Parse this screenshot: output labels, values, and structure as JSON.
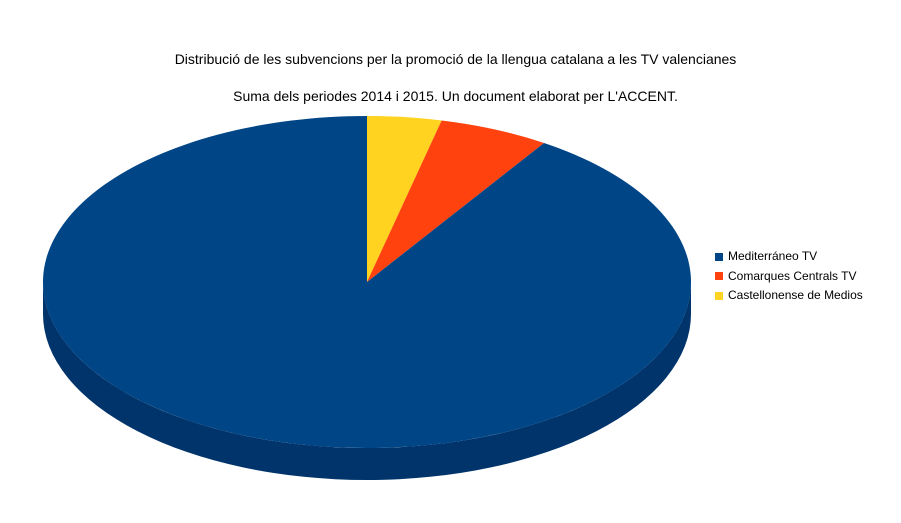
{
  "chart_data": {
    "type": "pie",
    "title": "Distribució de les subvencions per la promoció de la llengua catalana a les TV valencianes",
    "subtitle": "Suma dels periodes 2014 i 2015. Un document elaborat per L'ACCENT.",
    "style": "3d",
    "legend_position": "right",
    "slices": [
      {
        "label": "Mediterráneo TV",
        "value": 90.8,
        "color": "#004586",
        "side_color": "#00346b"
      },
      {
        "label": "Comarques Centrals TV",
        "value": 5.5,
        "color": "#ff420e",
        "side_color": "#cc350b"
      },
      {
        "label": "Castellonense de Medios",
        "value": 3.7,
        "color": "#ffd320",
        "side_color": "#ccaa1a"
      }
    ]
  }
}
